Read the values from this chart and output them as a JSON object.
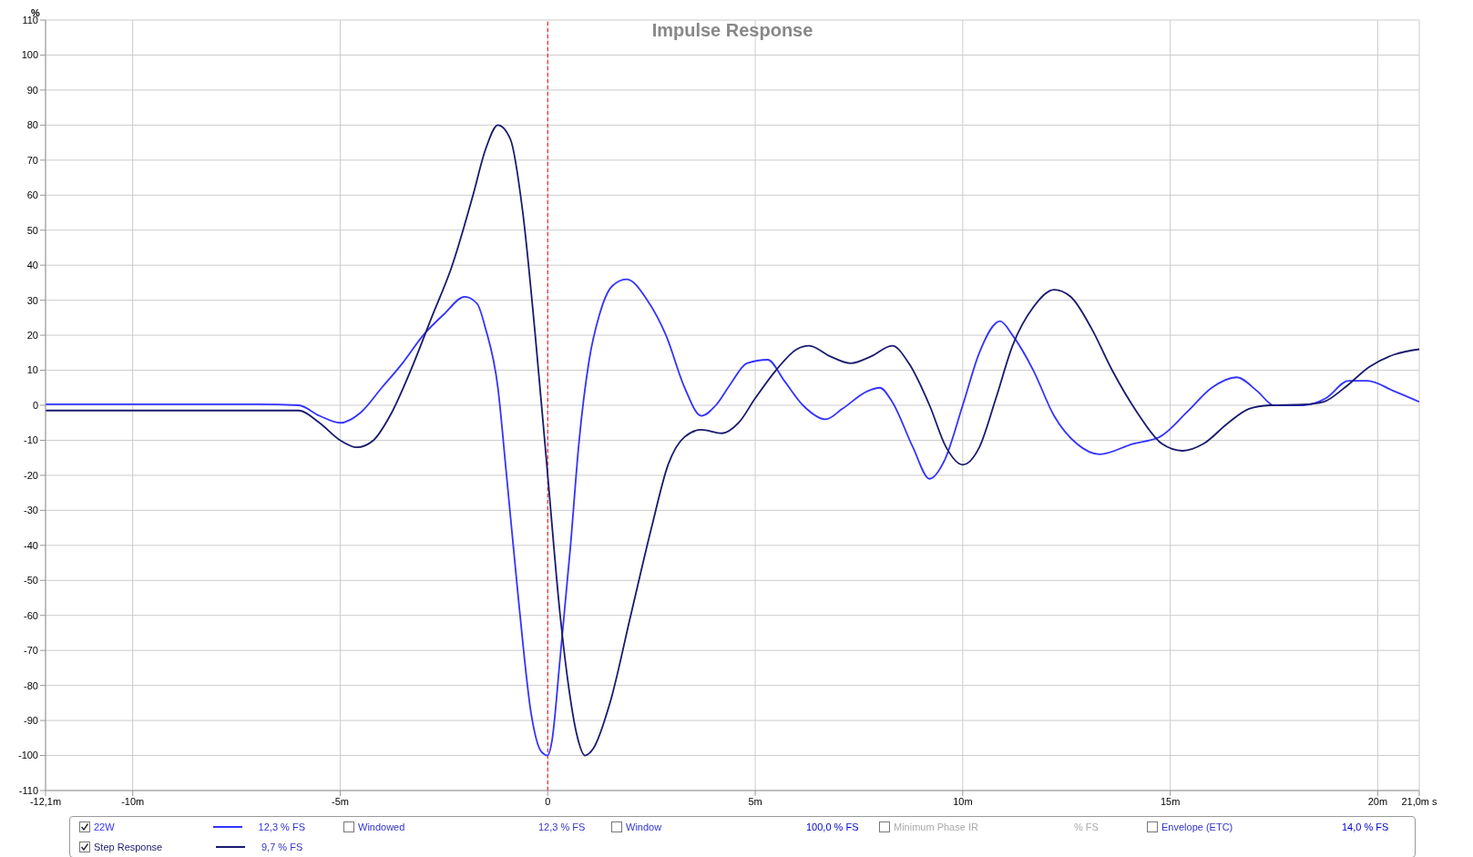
{
  "chart_data": {
    "type": "line",
    "title": "Impulse Response",
    "ylabel": "%",
    "xlim": [
      -12.1,
      21.0
    ],
    "ylim": [
      -110,
      110
    ],
    "xticks": [
      {
        "value": -12.1,
        "label": "-12,1m"
      },
      {
        "value": -10,
        "label": "-10m"
      },
      {
        "value": -5,
        "label": "-5m"
      },
      0,
      {
        "value": 5,
        "label": "5m"
      },
      {
        "value": 10,
        "label": "10m"
      },
      {
        "value": 15,
        "label": "15m"
      },
      {
        "value": 20,
        "label": "20m"
      },
      {
        "value": 21.0,
        "label": "21,0m s"
      }
    ],
    "yticks": [
      -110,
      -100,
      -90,
      -80,
      -70,
      -60,
      -50,
      -40,
      -30,
      -20,
      -10,
      0,
      10,
      20,
      30,
      40,
      50,
      60,
      70,
      80,
      90,
      100,
      110
    ],
    "grid": true,
    "legend": "bottom",
    "marker": "none",
    "line_style": "solid",
    "ref_lines": [
      {
        "axis": "x",
        "value": 0,
        "color": "#ff0000",
        "line_style": "dashed"
      }
    ],
    "annotations": [
      "12,3 % FS",
      "Windowed",
      "12,3 % FS",
      "Window",
      "100,0 % FS",
      "Minimum Phase IR",
      "% FS",
      "Envelope (ETC)",
      "14,0 % FS",
      "9,7 % FS"
    ],
    "series": [
      {
        "name": "22W",
        "color": "#3333ff",
        "x": [
          -12.1,
          -11,
          -10,
          -9,
          -8,
          -7,
          -6,
          -5.5,
          -5,
          -4.5,
          -4,
          -3.5,
          -3,
          -2.5,
          -2,
          -1.7,
          -1.5,
          -1.2,
          -1,
          -0.7,
          -0.4,
          -0.15,
          0,
          0.1,
          0.3,
          0.55,
          0.75,
          1,
          1.25,
          1.55,
          1.9,
          2.4,
          2.85,
          3.3,
          3.7,
          4.05,
          4.4,
          4.8,
          5.3,
          5.7,
          6.15,
          6.7,
          7.1,
          7.7,
          8.0,
          8.3,
          8.8,
          9.2,
          9.55,
          10,
          10.4,
          10.9,
          11.2,
          11.7,
          12.2,
          12.75,
          13.3,
          14.1,
          14.75,
          15.4,
          16.0,
          16.6,
          17.1,
          17.5,
          18.2,
          18.75,
          19.3,
          19.75,
          20.4,
          21.0
        ],
        "values": [
          0.3,
          0.3,
          0.3,
          0.3,
          0.3,
          0.3,
          0,
          -3,
          -5,
          -2,
          5,
          12,
          20,
          26,
          31,
          29,
          22,
          5,
          -19,
          -56,
          -88,
          -99,
          -100,
          -96,
          -72,
          -40,
          -11,
          13,
          26,
          34,
          36,
          30,
          20,
          5,
          -3,
          0,
          6,
          12,
          13,
          7,
          0,
          -4,
          -1,
          4,
          5,
          1,
          -12,
          -21,
          -16,
          0,
          15,
          24,
          20,
          10,
          -3,
          -11,
          -14,
          -11,
          -9,
          -2,
          5,
          8,
          4,
          0,
          0,
          2,
          7,
          7,
          4,
          1
        ]
      },
      {
        "name": "Step Response",
        "color": "#1a1a6e",
        "x": [
          -12.1,
          -10,
          -8,
          -7,
          -6,
          -5.5,
          -5,
          -4.6,
          -4.2,
          -3.8,
          -3.3,
          -2.8,
          -2.3,
          -1.8,
          -1.5,
          -1.2,
          -0.9,
          -0.6,
          -0.3,
          0,
          0.3,
          0.5,
          0.7,
          0.9,
          1.1,
          1.5,
          2.0,
          2.5,
          2.9,
          3.3,
          3.7,
          4.2,
          4.6,
          5.0,
          5.5,
          6.0,
          6.3,
          6.8,
          7.3,
          7.8,
          8.3,
          8.7,
          9.2,
          9.6,
          10.0,
          10.4,
          10.8,
          11.2,
          11.7,
          12.2,
          12.6,
          13.1,
          13.6,
          14.2,
          14.8,
          15.3,
          15.8,
          16.4,
          16.9,
          17.4,
          18.2,
          18.7,
          19.2,
          19.8,
          20.4,
          21.0
        ],
        "values": [
          -1.5,
          -1.5,
          -1.5,
          -1.5,
          -1.5,
          -5,
          -10,
          -12,
          -10,
          -3,
          10,
          25,
          40,
          60,
          73,
          80,
          76,
          55,
          20,
          -20,
          -60,
          -80,
          -94,
          -100,
          -98,
          -85,
          -60,
          -35,
          -17,
          -9,
          -7,
          -8,
          -5,
          2,
          10,
          16,
          17,
          14,
          12,
          14,
          17,
          12,
          0,
          -12,
          -17,
          -12,
          2,
          17,
          28,
          33,
          31,
          22,
          10,
          -2,
          -11,
          -13,
          -11,
          -5,
          -1,
          0,
          0.2,
          1,
          5,
          11,
          14.5,
          16
        ]
      }
    ]
  }
}
